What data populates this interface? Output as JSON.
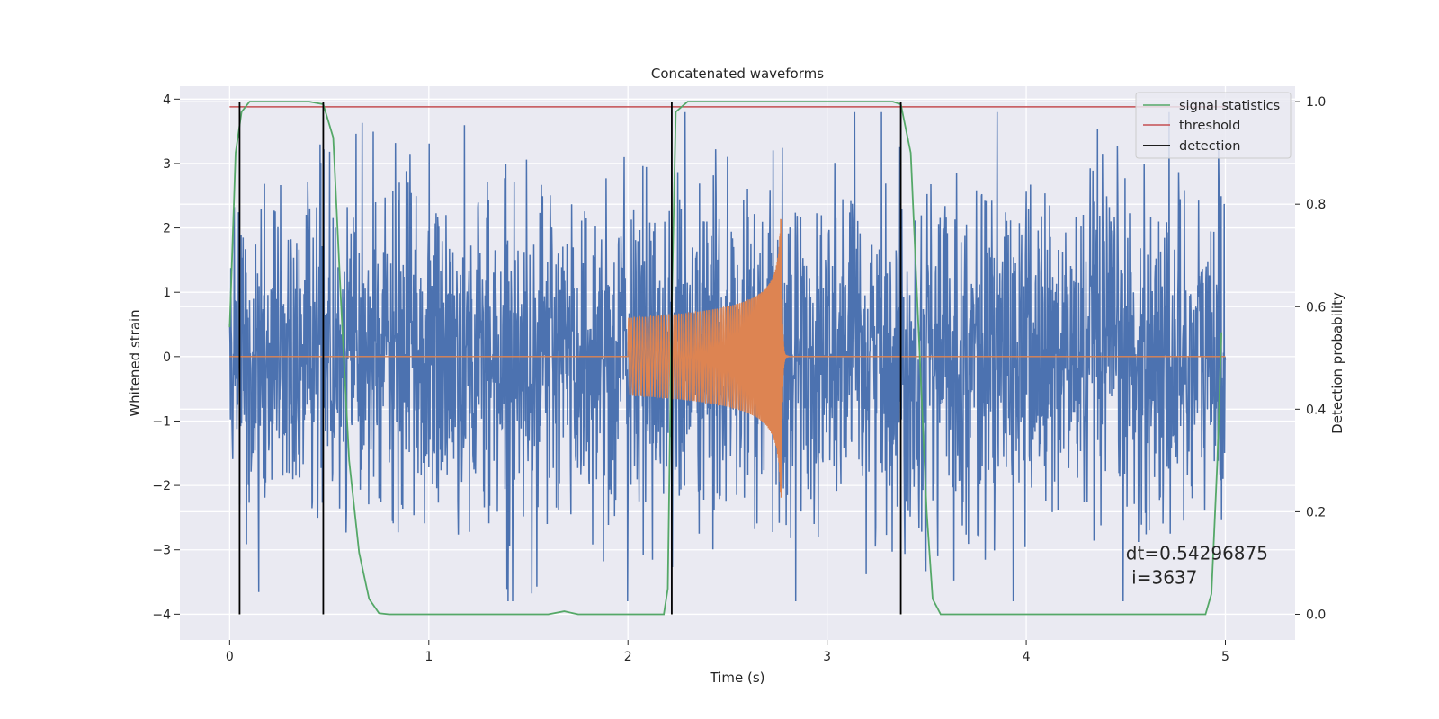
{
  "chart_data": {
    "type": "line",
    "title": "Concatenated waveforms",
    "xlabel": "Time (s)",
    "ylabel_left": "Whitened strain",
    "ylabel_right": "Detection probability",
    "xlim": [
      -0.25,
      5.35
    ],
    "ylim_left": [
      -4.4,
      4.2
    ],
    "ylim_right": [
      -0.05,
      1.03
    ],
    "x_ticks": [
      0,
      1,
      2,
      3,
      4,
      5
    ],
    "x_tick_labels": [
      "0",
      "1",
      "2",
      "3",
      "4",
      "5"
    ],
    "y_left_ticks": [
      -4,
      -3,
      -2,
      -1,
      0,
      1,
      2,
      3,
      4
    ],
    "y_left_tick_labels": [
      "−4",
      "−3",
      "−2",
      "−1",
      "0",
      "1",
      "2",
      "3",
      "4"
    ],
    "y_right_ticks": [
      0.0,
      0.2,
      0.4,
      0.6,
      0.8,
      1.0
    ],
    "y_right_tick_labels": [
      "0.0",
      "0.2",
      "0.4",
      "0.6",
      "0.8",
      "1.0"
    ],
    "grid": true,
    "legend_position": "top-right",
    "series": [
      {
        "name": "",
        "axis": "left",
        "kind": "noise",
        "color": "#4c72b0",
        "x_range": [
          0,
          5
        ],
        "envelope_typical": 1.3,
        "envelope_peak": 3.8
      },
      {
        "name": "",
        "axis": "left",
        "kind": "chirp",
        "color": "#dd8452",
        "x_range": [
          0,
          5
        ],
        "chirp_start": 2.0,
        "chirp_merger": 2.77,
        "start_amplitude": 0.6,
        "peak_amplitude": 2.3
      },
      {
        "name": "signal statistics",
        "axis": "right",
        "color": "#55a868",
        "points": [
          [
            0,
            0.56
          ],
          [
            0.03,
            0.9
          ],
          [
            0.06,
            0.98
          ],
          [
            0.1,
            1.0
          ],
          [
            0.4,
            1.0
          ],
          [
            0.47,
            0.995
          ],
          [
            0.52,
            0.93
          ],
          [
            0.56,
            0.6
          ],
          [
            0.6,
            0.3
          ],
          [
            0.65,
            0.12
          ],
          [
            0.7,
            0.03
          ],
          [
            0.75,
            0.002
          ],
          [
            0.8,
            0.0
          ],
          [
            1.6,
            0.0
          ],
          [
            1.68,
            0.006
          ],
          [
            1.75,
            0.0
          ],
          [
            2.18,
            0.0
          ],
          [
            2.2,
            0.05
          ],
          [
            2.22,
            0.6
          ],
          [
            2.24,
            0.98
          ],
          [
            2.3,
            1.0
          ],
          [
            3.33,
            1.0
          ],
          [
            3.37,
            0.995
          ],
          [
            3.42,
            0.9
          ],
          [
            3.46,
            0.55
          ],
          [
            3.5,
            0.2
          ],
          [
            3.53,
            0.03
          ],
          [
            3.57,
            0.0
          ],
          [
            4.9,
            0.0
          ],
          [
            4.93,
            0.04
          ],
          [
            4.96,
            0.3
          ],
          [
            4.98,
            0.55
          ]
        ]
      },
      {
        "name": "threshold",
        "axis": "right",
        "color": "#c44e52",
        "y": 0.99,
        "x_range": [
          0,
          5
        ]
      }
    ],
    "detections": {
      "name": "detection",
      "color": "#000000",
      "x": [
        0.05,
        0.47,
        2.22,
        3.37
      ]
    },
    "annotation": {
      "lines": [
        "dt=0.54296875",
        " i=3637"
      ],
      "x": 4.5,
      "y": -3.15
    }
  }
}
